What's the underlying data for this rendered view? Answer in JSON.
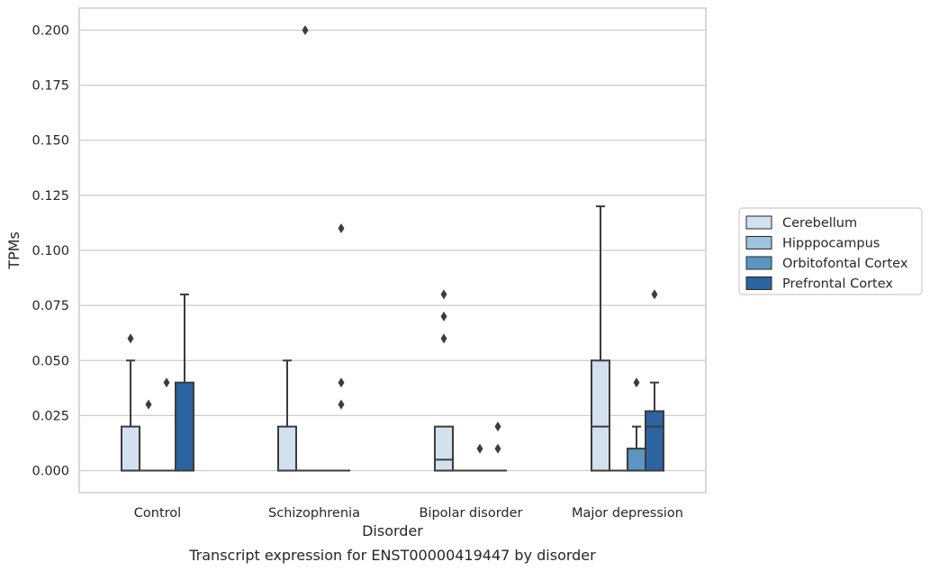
{
  "chart_data": {
    "type": "box",
    "caption": "Transcript expression for ENST00000419447 by disorder",
    "xlabel": "Disorder",
    "ylabel": "TPMs",
    "ylim": [
      -0.01,
      0.21
    ],
    "yticks": [
      0.0,
      0.025,
      0.05,
      0.075,
      0.1,
      0.125,
      0.15,
      0.175,
      0.2
    ],
    "ytick_labels": [
      "0.000",
      "0.025",
      "0.050",
      "0.075",
      "0.100",
      "0.125",
      "0.150",
      "0.175",
      "0.200"
    ],
    "grid": "horizontal",
    "legend_position": "right",
    "categories": [
      "Control",
      "Schizophrenia",
      "Bipolar disorder",
      "Major depression"
    ],
    "series": [
      {
        "name": "Cerebellum",
        "color": "#d3e1ef",
        "boxes": [
          {
            "q1": 0,
            "median": 0,
            "q3": 0.02,
            "whisker_low": 0,
            "whisker_high": 0.05,
            "outliers": [
              0.06
            ]
          },
          {
            "q1": 0,
            "median": 0,
            "q3": 0.02,
            "whisker_low": 0,
            "whisker_high": 0.05,
            "outliers": []
          },
          {
            "q1": 0,
            "median": 0.005,
            "q3": 0.02,
            "whisker_low": 0,
            "whisker_high": 0.02,
            "outliers": [
              0.06,
              0.07,
              0.08
            ]
          },
          {
            "q1": 0,
            "median": 0.02,
            "q3": 0.05,
            "whisker_low": 0,
            "whisker_high": 0.12,
            "outliers": []
          }
        ]
      },
      {
        "name": "Hipppocampus",
        "color": "#9dc3dd",
        "boxes": [
          {
            "q1": 0,
            "median": 0,
            "q3": 0,
            "whisker_low": 0,
            "whisker_high": 0,
            "outliers": [
              0.03
            ]
          },
          {
            "q1": 0,
            "median": 0,
            "q3": 0,
            "whisker_low": 0,
            "whisker_high": 0,
            "outliers": [
              0.2
            ]
          },
          {
            "q1": 0,
            "median": 0,
            "q3": 0,
            "whisker_low": 0,
            "whisker_high": 0,
            "outliers": []
          },
          {
            "q1": 0,
            "median": 0,
            "q3": 0,
            "whisker_low": 0,
            "whisker_high": 0,
            "outliers": []
          }
        ]
      },
      {
        "name": "Orbitofontal Cortex",
        "color": "#5a96c0",
        "boxes": [
          {
            "q1": 0,
            "median": 0,
            "q3": 0,
            "whisker_low": 0,
            "whisker_high": 0,
            "outliers": [
              0.04
            ]
          },
          {
            "q1": 0,
            "median": 0,
            "q3": 0,
            "whisker_low": 0,
            "whisker_high": 0,
            "outliers": []
          },
          {
            "q1": 0,
            "median": 0,
            "q3": 0,
            "whisker_low": 0,
            "whisker_high": 0,
            "outliers": [
              0.01
            ]
          },
          {
            "q1": 0,
            "median": 0,
            "q3": 0.01,
            "whisker_low": 0,
            "whisker_high": 0.02,
            "outliers": [
              0.04
            ]
          }
        ]
      },
      {
        "name": "Prefrontal Cortex",
        "color": "#2b64a0",
        "boxes": [
          {
            "q1": 0,
            "median": 0,
            "q3": 0.04,
            "whisker_low": 0,
            "whisker_high": 0.08,
            "outliers": []
          },
          {
            "q1": 0,
            "median": 0,
            "q3": 0,
            "whisker_low": 0,
            "whisker_high": 0,
            "outliers": [
              0.03,
              0.04,
              0.11
            ]
          },
          {
            "q1": 0,
            "median": 0,
            "q3": 0,
            "whisker_low": 0,
            "whisker_high": 0,
            "outliers": [
              0.01,
              0.02
            ]
          },
          {
            "q1": 0,
            "median": 0.02,
            "q3": 0.027,
            "whisker_low": 0,
            "whisker_high": 0.04,
            "outliers": [
              0.08
            ]
          }
        ]
      }
    ]
  }
}
